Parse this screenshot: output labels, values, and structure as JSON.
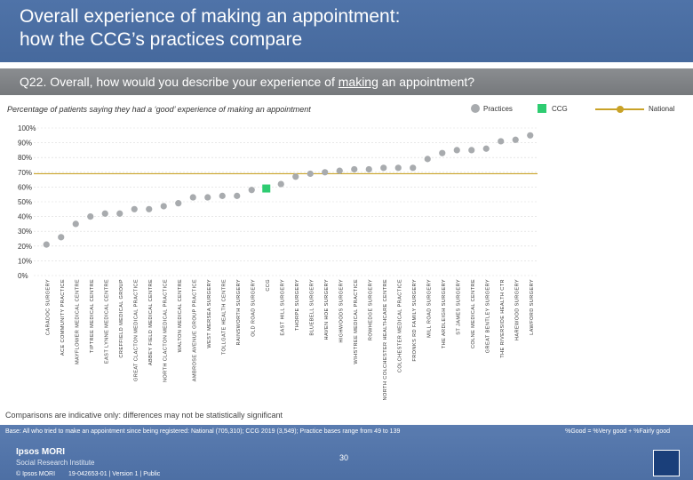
{
  "header": {
    "title_line1": "Overall experience of making an appointment:",
    "title_line2": "how the CCG’s practices compare"
  },
  "question": {
    "prefix": "Q22. Overall, how would you describe your experience of ",
    "underlined": "making",
    "suffix": " an appointment?"
  },
  "subtitle": "Percentage of patients saying they had a ‘good’ experience of making an appointment",
  "legend": {
    "practices": "Practices",
    "ccg": "CCG",
    "national": "National"
  },
  "colors": {
    "practice": "#a8abae",
    "ccg": "#2ecc71",
    "national": "#c9a227",
    "header": "#4f73a8"
  },
  "chart_data": {
    "type": "scatter",
    "title": "Percentage of patients saying they had a ‘good’ experience of making an appointment",
    "ylim": [
      0,
      100
    ],
    "yticks": [
      "0%",
      "10%",
      "20%",
      "30%",
      "40%",
      "50%",
      "60%",
      "70%",
      "80%",
      "90%",
      "100%"
    ],
    "national": 69,
    "categories": [
      "CARADOC SURGERY",
      "ACE COMMUNITY PRACTICE",
      "MAYFLOWER MEDICAL CENTRE",
      "TIPTREE MEDICAL CENTRE",
      "EAST LYNNE MEDICAL CENTRE",
      "CREFFIELD MEDICAL GROUP",
      "GREAT CLACTON MEDICAL PRACTICE",
      "ABBEY FIELD MEDICAL CENTRE",
      "NORTH CLACTON MEDICAL PRACTICE",
      "WALTON MEDICAL CENTRE",
      "AMBROSE AVENUE GROUP PRACTICE",
      "WEST MERSEA SURGERY",
      "TOLLGATE HEALTH CENTRE",
      "RAINSWORTH SURGERY",
      "OLD ROAD SURGERY",
      "CCG",
      "EAST HILL SURGERY",
      "THORPE SURGERY",
      "BLUEBELL SURGERY",
      "HAVEN HOE SURGERY",
      "HIGHWOODS SURGERY",
      "WIHSTREE MEDICAL PRACTICE",
      "ROWHEDGE SURGERY",
      "NORTH COLCHESTER HEALTHCARE CENTRE",
      "COLCHESTER MEDICAL PRACTICE",
      "FRONKS RD FAMILY SURGERY",
      "MILL ROAD SURGERY",
      "THE ARDLEIGH SURGERY",
      "ST JAMES SURGERY",
      "COLNE MEDICAL CENTRE",
      "GREAT BENTLEY SURGERY",
      "THE RIVERSIDE HEALTH CTR",
      "HAREWOOD SURGERY",
      "LAWFORD SURGERY"
    ],
    "values": [
      21,
      26,
      35,
      40,
      42,
      42,
      45,
      45,
      47,
      49,
      53,
      53,
      54,
      54,
      58,
      59,
      62,
      67,
      69,
      70,
      71,
      72,
      72,
      73,
      73,
      73,
      79,
      83,
      85,
      85,
      86,
      91,
      92,
      95
    ],
    "ccg_index": 15
  },
  "note": "Comparisons are indicative only: differences may not be statistically significant",
  "footer": {
    "base": "Base: All who tried to make an appointment since being registered: National (705,310); CCG 2019 (3,549); Practice bases range from 49 to 139",
    "scale": "%Good = %Very good + %Fairly good",
    "logo_main": "Ipsos MORI",
    "logo_sub": "Social Research Institute",
    "copyright": "© Ipsos MORI",
    "ref": "19-042653-01 | Version 1 | Public",
    "page": "30"
  }
}
